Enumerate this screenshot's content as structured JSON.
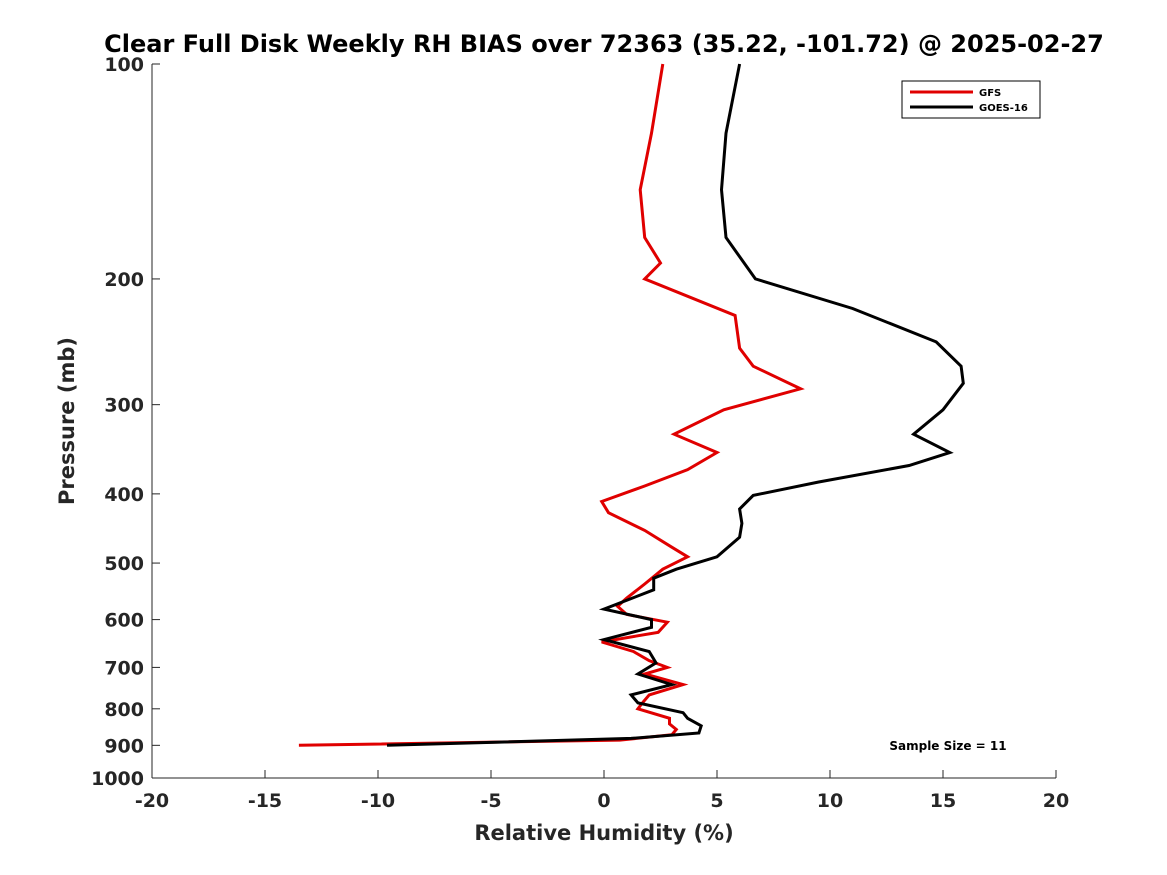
{
  "chart_data": {
    "type": "line",
    "title": "Clear Full Disk Weekly RH BIAS over 72363 (35.22, -101.72) @ 2025-02-27",
    "xlabel": "Relative Humidity (%)",
    "ylabel": "Pressure (mb)",
    "xlim": [
      -20,
      20
    ],
    "ylim": [
      100,
      1000
    ],
    "y_scale": "log",
    "y_reversed": true,
    "x_ticks": [
      -20,
      -15,
      -10,
      -5,
      0,
      5,
      10,
      15,
      20
    ],
    "x_tick_labels": [
      "-20",
      "-15",
      "-10",
      "-5",
      "0",
      "5",
      "10",
      "15",
      "20"
    ],
    "y_ticks": [
      100,
      200,
      300,
      400,
      500,
      600,
      700,
      800,
      900,
      1000
    ],
    "y_tick_labels": [
      "100",
      "200",
      "300",
      "400",
      "500",
      "600",
      "700",
      "800",
      "900",
      "1000"
    ],
    "grid": false,
    "legend_position": "top-right",
    "series": [
      {
        "name": "GFS",
        "color": "#e00000",
        "points": [
          {
            "x": 2.6,
            "y": 100
          },
          {
            "x": 2.1,
            "y": 125
          },
          {
            "x": 1.6,
            "y": 150
          },
          {
            "x": 1.8,
            "y": 175
          },
          {
            "x": 2.5,
            "y": 190
          },
          {
            "x": 1.8,
            "y": 200
          },
          {
            "x": 5.8,
            "y": 225
          },
          {
            "x": 6.0,
            "y": 250
          },
          {
            "x": 6.6,
            "y": 265
          },
          {
            "x": 8.7,
            "y": 285
          },
          {
            "x": 5.3,
            "y": 305
          },
          {
            "x": 3.1,
            "y": 330
          },
          {
            "x": 5.0,
            "y": 350
          },
          {
            "x": 3.7,
            "y": 370
          },
          {
            "x": 1.8,
            "y": 390
          },
          {
            "x": -0.1,
            "y": 410
          },
          {
            "x": 0.2,
            "y": 425
          },
          {
            "x": 1.8,
            "y": 450
          },
          {
            "x": 3.0,
            "y": 475
          },
          {
            "x": 3.7,
            "y": 490
          },
          {
            "x": 2.6,
            "y": 510
          },
          {
            "x": 1.8,
            "y": 535
          },
          {
            "x": 1.0,
            "y": 560
          },
          {
            "x": 0.6,
            "y": 575
          },
          {
            "x": 1.0,
            "y": 590
          },
          {
            "x": 2.8,
            "y": 605
          },
          {
            "x": 2.4,
            "y": 625
          },
          {
            "x": -0.1,
            "y": 645
          },
          {
            "x": 1.3,
            "y": 665
          },
          {
            "x": 2.0,
            "y": 685
          },
          {
            "x": 2.8,
            "y": 700
          },
          {
            "x": 1.8,
            "y": 715
          },
          {
            "x": 3.5,
            "y": 740
          },
          {
            "x": 2.0,
            "y": 765
          },
          {
            "x": 1.7,
            "y": 785
          },
          {
            "x": 1.5,
            "y": 800
          },
          {
            "x": 2.9,
            "y": 825
          },
          {
            "x": 2.9,
            "y": 840
          },
          {
            "x": 3.2,
            "y": 855
          },
          {
            "x": 3.0,
            "y": 870
          },
          {
            "x": 0.7,
            "y": 885
          },
          {
            "x": -13.5,
            "y": 900
          }
        ]
      },
      {
        "name": "GOES-16",
        "color": "#000000",
        "points": [
          {
            "x": 6.0,
            "y": 100
          },
          {
            "x": 5.4,
            "y": 125
          },
          {
            "x": 5.2,
            "y": 150
          },
          {
            "x": 5.4,
            "y": 175
          },
          {
            "x": 6.7,
            "y": 200
          },
          {
            "x": 11.0,
            "y": 220
          },
          {
            "x": 14.7,
            "y": 245
          },
          {
            "x": 15.8,
            "y": 265
          },
          {
            "x": 15.9,
            "y": 280
          },
          {
            "x": 15.0,
            "y": 305
          },
          {
            "x": 13.7,
            "y": 330
          },
          {
            "x": 15.3,
            "y": 350
          },
          {
            "x": 13.5,
            "y": 365
          },
          {
            "x": 9.5,
            "y": 385
          },
          {
            "x": 6.6,
            "y": 402
          },
          {
            "x": 6.0,
            "y": 420
          },
          {
            "x": 6.1,
            "y": 440
          },
          {
            "x": 6.0,
            "y": 460
          },
          {
            "x": 5.0,
            "y": 490
          },
          {
            "x": 3.2,
            "y": 510
          },
          {
            "x": 2.2,
            "y": 525
          },
          {
            "x": 2.2,
            "y": 545
          },
          {
            "x": 0.0,
            "y": 580
          },
          {
            "x": 2.1,
            "y": 600
          },
          {
            "x": 2.1,
            "y": 615
          },
          {
            "x": 0.0,
            "y": 640
          },
          {
            "x": 2.0,
            "y": 665
          },
          {
            "x": 2.3,
            "y": 690
          },
          {
            "x": 1.5,
            "y": 715
          },
          {
            "x": 3.0,
            "y": 740
          },
          {
            "x": 1.2,
            "y": 765
          },
          {
            "x": 1.5,
            "y": 785
          },
          {
            "x": 3.5,
            "y": 810
          },
          {
            "x": 3.7,
            "y": 825
          },
          {
            "x": 4.3,
            "y": 845
          },
          {
            "x": 4.2,
            "y": 865
          },
          {
            "x": 1.2,
            "y": 880
          },
          {
            "x": -9.6,
            "y": 900
          }
        ]
      }
    ],
    "annotations": [
      "Sample Size = 11"
    ]
  }
}
